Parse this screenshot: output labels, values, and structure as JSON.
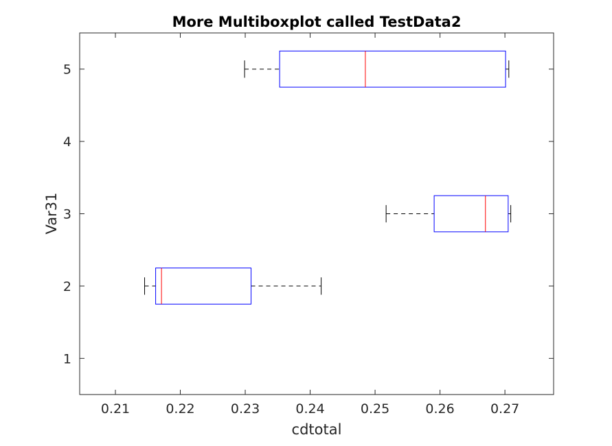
{
  "chart_data": {
    "type": "boxplot",
    "orientation": "horizontal",
    "title": "More Multiboxplot called TestData2",
    "xlabel": "cdtotal",
    "ylabel": "Var31",
    "xlim": [
      0.2045,
      0.2775
    ],
    "ylim": [
      0.5,
      5.5
    ],
    "xticks": [
      "0.21",
      "0.22",
      "0.23",
      "0.24",
      "0.25",
      "0.26",
      "0.27"
    ],
    "yticks": [
      "1",
      "2",
      "3",
      "4",
      "5"
    ],
    "grid": false,
    "legend": "none",
    "colors": {
      "box": "#0000ff",
      "median": "#ff0000",
      "whisker": "#000000",
      "axis": "#262626"
    },
    "boxes": [
      {
        "group": "2",
        "whisker_low": 0.2145,
        "q1": 0.2162,
        "median": 0.2171,
        "q3": 0.2309,
        "whisker_high": 0.2417
      },
      {
        "group": "3",
        "whisker_low": 0.2517,
        "q1": 0.2591,
        "median": 0.267,
        "q3": 0.2705,
        "whisker_high": 0.2709
      },
      {
        "group": "5",
        "whisker_low": 0.2299,
        "q1": 0.2353,
        "median": 0.2485,
        "q3": 0.2701,
        "whisker_high": 0.2706
      }
    ]
  }
}
